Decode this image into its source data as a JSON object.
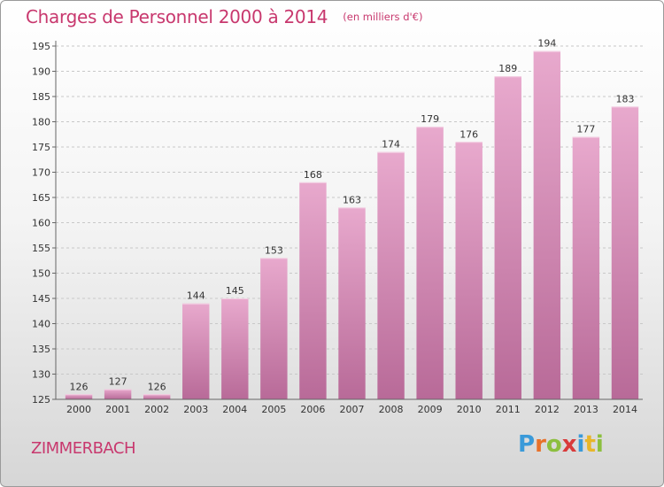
{
  "header": {
    "title": "Charges de Personnel 2000 à 2014",
    "unit": "(en milliers d'€)"
  },
  "place": "ZIMMERBACH",
  "brand": {
    "letters": [
      "P",
      "r",
      "o",
      "x",
      "i",
      "t",
      "i"
    ],
    "colors": [
      "#3a9ad9",
      "#e8712a",
      "#8cbf3f",
      "#d93a3a",
      "#3a9ad9",
      "#e8b62a",
      "#8cbf3f"
    ]
  },
  "colors": {
    "title": "#c8386e",
    "bar_top": "#e8a9cd",
    "bar_bottom": "#b86a98"
  },
  "chart_data": {
    "type": "bar",
    "categories": [
      "2000",
      "2001",
      "2002",
      "2003",
      "2004",
      "2005",
      "2006",
      "2007",
      "2008",
      "2009",
      "2010",
      "2011",
      "2012",
      "2013",
      "2014"
    ],
    "values": [
      126,
      127,
      126,
      144,
      145,
      153,
      168,
      163,
      174,
      179,
      176,
      189,
      194,
      177,
      183
    ],
    "yticks": [
      125,
      130,
      135,
      140,
      145,
      150,
      155,
      160,
      165,
      170,
      175,
      180,
      185,
      190,
      195
    ],
    "ylim": [
      125,
      195
    ],
    "grid": true
  }
}
